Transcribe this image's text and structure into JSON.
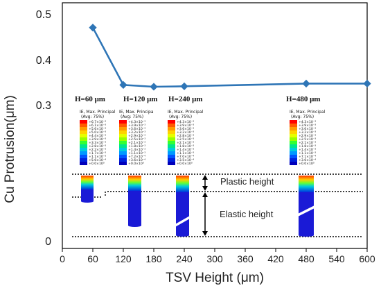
{
  "chart_data": {
    "type": "line",
    "xlabel": "TSV Height (μm)",
    "ylabel": "Cu Protrusion(μm)",
    "xlim": [
      0,
      600
    ],
    "ylim": [
      0,
      0.5
    ],
    "x_ticks": [
      0,
      60,
      120,
      180,
      240,
      300,
      360,
      420,
      480,
      540,
      600
    ],
    "y_ticks": [
      {
        "value": 0.5,
        "label": "0.5"
      },
      {
        "value": 0.4,
        "label": "0.4"
      },
      {
        "value": 0.3,
        "label": "0.3"
      },
      {
        "value": 0,
        "label": "0"
      }
    ],
    "series": [
      {
        "color": "#2e75b6",
        "x": [
          60,
          120,
          180,
          240,
          480,
          600
        ],
        "y": [
          0.47,
          0.344,
          0.34,
          0.341,
          0.347,
          0.347
        ]
      }
    ]
  },
  "annotations": {
    "height_labels": [
      "H=60 μm",
      "H=120 μm",
      "H=240 μm",
      "H=480 μm"
    ],
    "plastic_label": "Plastic height",
    "elastic_label": "Elastic height",
    "legend_header": "IE, Max. Principal",
    "legend_header_cut": "IE, Max. Principa",
    "legend_avg": "(Avg: 75%)",
    "legend_values": [
      [
        "+6.7×10⁻³",
        "+6.1×10⁻³",
        "+5.6×10⁻³",
        "+5.0×10⁻³",
        "+4.4×10⁻³",
        "+3.9×10⁻³",
        "+3.3×10⁻³",
        "+2.8×10⁻³",
        "+2.2×10⁻³",
        "+1.7×10⁻³",
        "+1.1×10⁻³",
        "+5.6×10⁻⁴",
        "+0.0×10⁰"
      ],
      [
        "+4.3×10⁻³",
        "+3.9×10⁻³",
        "+3.6×10⁻³",
        "+3.2×10⁻³",
        "+2.9×10⁻³",
        "+2.5×10⁻³",
        "+2.1×10⁻³",
        "+1.8×10⁻³",
        "+1.4×10⁻³",
        "+1.1×10⁻³",
        "+7.2×10⁻⁴",
        "+3.6×10⁻⁴",
        "+0.0×10⁰"
      ],
      [
        "+4.3×10⁻³",
        "+3.9×10⁻³",
        "+3.6×10⁻³",
        "+3.2×10⁻³",
        "+2.8×10⁻³",
        "+2.5×10⁻³",
        "+2.1×10⁻³",
        "+1.8×10⁻³",
        "+1.4×10⁻³",
        "+1.1×10⁻³",
        "+7.0×10⁻⁴",
        "+3.5×10⁻⁴",
        "+0.0×10⁰"
      ],
      [
        "+4.3×10⁻³",
        "+3.9×10⁻³",
        "+3.6×10⁻³",
        "+3.2×10⁻³",
        "+2.9×10⁻³",
        "+2.5×10⁻³",
        "+2.1×10⁻³",
        "+1.8×10⁻³",
        "+1.4×10⁻³",
        "+1.1×10⁻³",
        "+7.1×10⁻⁴",
        "+3.6×10⁻⁴",
        "+0.0×10⁰"
      ]
    ],
    "colorbar": [
      "#ff0000",
      "#ff5a00",
      "#ff9900",
      "#ffd200",
      "#e6ff00",
      "#99ff00",
      "#33ff33",
      "#00e68c",
      "#00ccdd",
      "#0099ff",
      "#0055ff",
      "#0022dd",
      "#0000bb"
    ]
  }
}
